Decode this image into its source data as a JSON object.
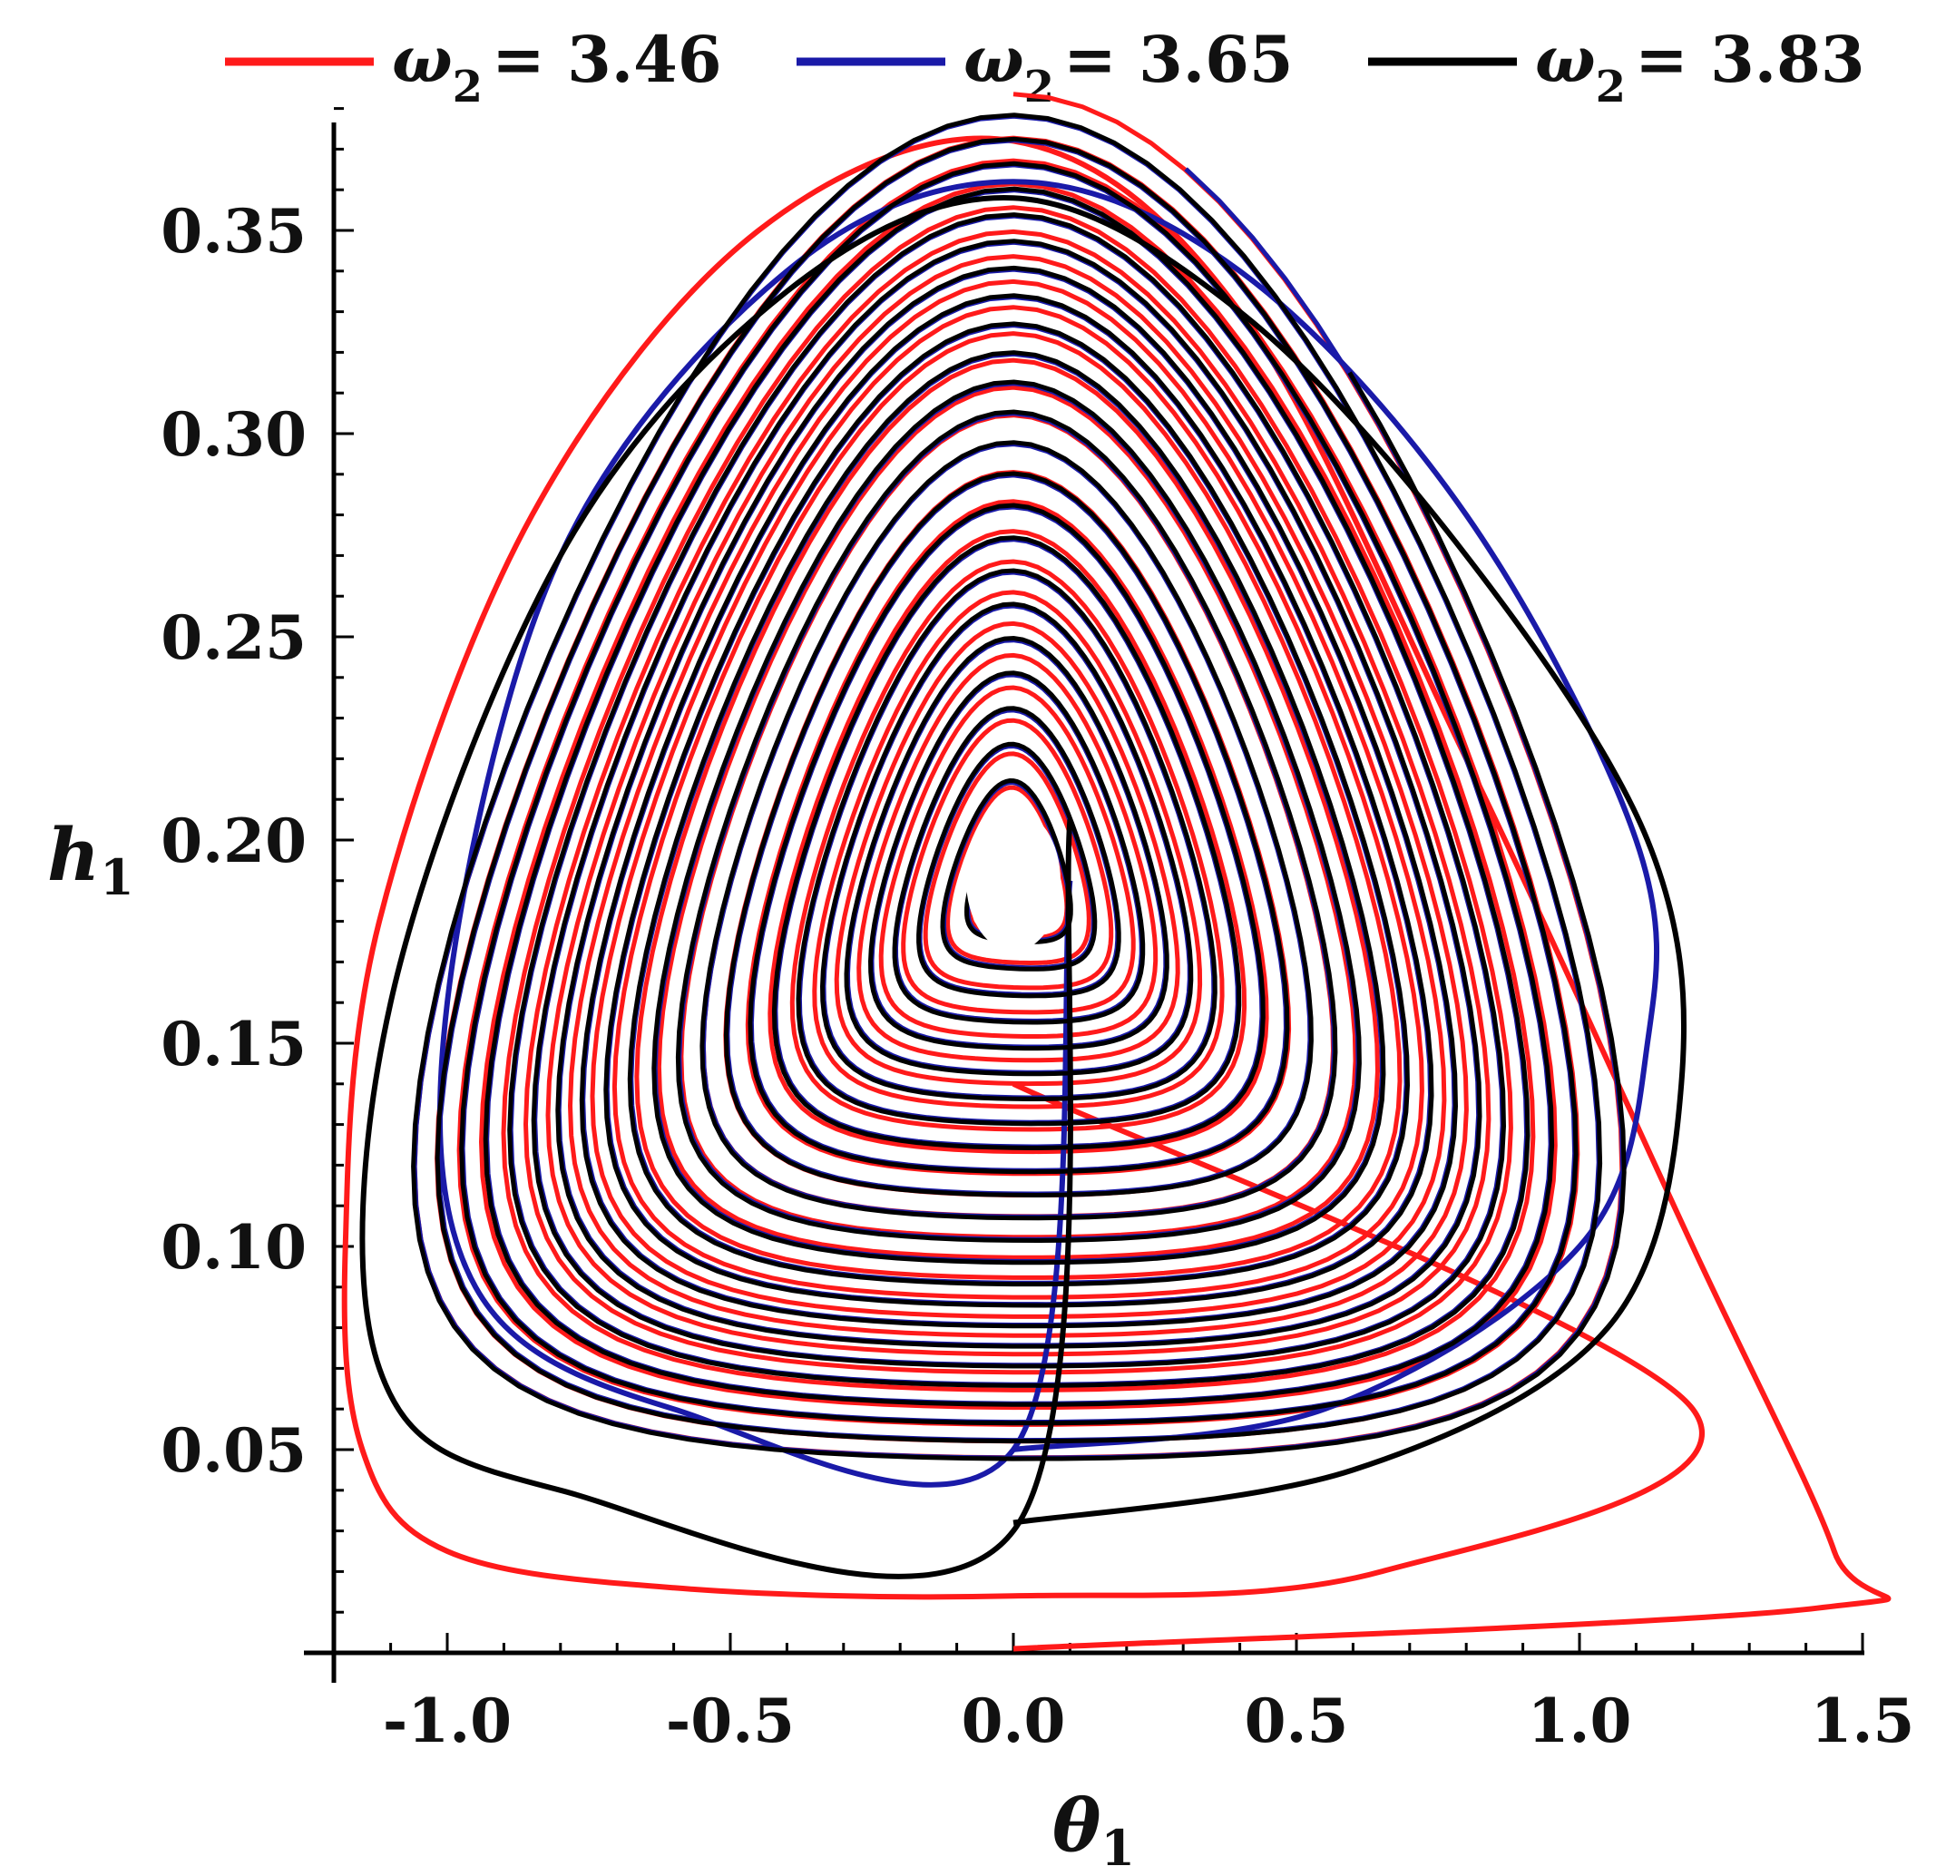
{
  "chart_data": {
    "type": "line",
    "title": "",
    "xlabel": "θ1",
    "xlabel_symbol": "θ",
    "xlabel_sub": "1",
    "ylabel": "h1",
    "ylabel_symbol": "h",
    "ylabel_sub": "1",
    "xlim": [
      -1.2,
      1.5
    ],
    "ylim": [
      0.0,
      0.38
    ],
    "xticks": [
      -1.0,
      -0.5,
      0.0,
      0.5,
      1.0,
      1.5
    ],
    "xtick_labels": [
      "-1.0",
      "-0.5",
      "0.0",
      "0.5",
      "1.0",
      "1.5"
    ],
    "yticks": [
      0.05,
      0.1,
      0.15,
      0.2,
      0.25,
      0.3,
      0.35
    ],
    "ytick_labels": [
      "0.05",
      "0.10",
      "0.15",
      "0.20",
      "0.25",
      "0.30",
      "0.35"
    ],
    "grid": false,
    "legend": "top",
    "center": [
      0.0,
      0.19
    ],
    "series": [
      {
        "name": "ω2 = 3.46",
        "legend_symbol": "ω",
        "legend_sub": "2",
        "legend_value": "= 3.46",
        "color": "#ff1a1a",
        "x": [
          0.0,
          1.42,
          1.45,
          1.2,
          0.8,
          0.4,
          0.0,
          -0.45,
          -0.85,
          -1.12,
          -1.18,
          -1.15,
          -1.0,
          -0.6,
          0.0,
          0.65,
          1.2,
          0.0
        ],
        "y": [
          0.001,
          0.011,
          0.025,
          0.1,
          0.22,
          0.33,
          0.372,
          0.35,
          0.28,
          0.18,
          0.1,
          0.05,
          0.025,
          0.016,
          0.014,
          0.02,
          0.06,
          0.14
        ]
      },
      {
        "name": "ω2 = 3.65",
        "legend_symbol": "ω",
        "legend_sub": "2",
        "legend_value": "= 3.65",
        "color": "#1a1aa8",
        "x": [
          0.0,
          0.55,
          1.0,
          1.12,
          1.1,
          0.8,
          0.4,
          0.0,
          -0.4,
          -0.8,
          -1.0,
          -0.95,
          -0.6,
          0.0,
          0.1
        ],
        "y": [
          0.05,
          0.06,
          0.1,
          0.15,
          0.2,
          0.28,
          0.34,
          0.362,
          0.34,
          0.27,
          0.16,
          0.09,
          0.06,
          0.05,
          0.19
        ]
      },
      {
        "name": "ω2 = 3.83",
        "legend_symbol": "ω",
        "legend_sub": "2",
        "legend_value": "= 3.83",
        "color": "#000000",
        "x": [
          0.0,
          0.6,
          1.05,
          1.18,
          1.12,
          0.8,
          0.4,
          0.0,
          -0.4,
          -0.8,
          -1.1,
          -1.12,
          -0.8,
          0.0,
          0.1
        ],
        "y": [
          0.032,
          0.045,
          0.08,
          0.14,
          0.2,
          0.27,
          0.33,
          0.358,
          0.335,
          0.27,
          0.16,
          0.07,
          0.04,
          0.03,
          0.205
        ]
      }
    ]
  }
}
